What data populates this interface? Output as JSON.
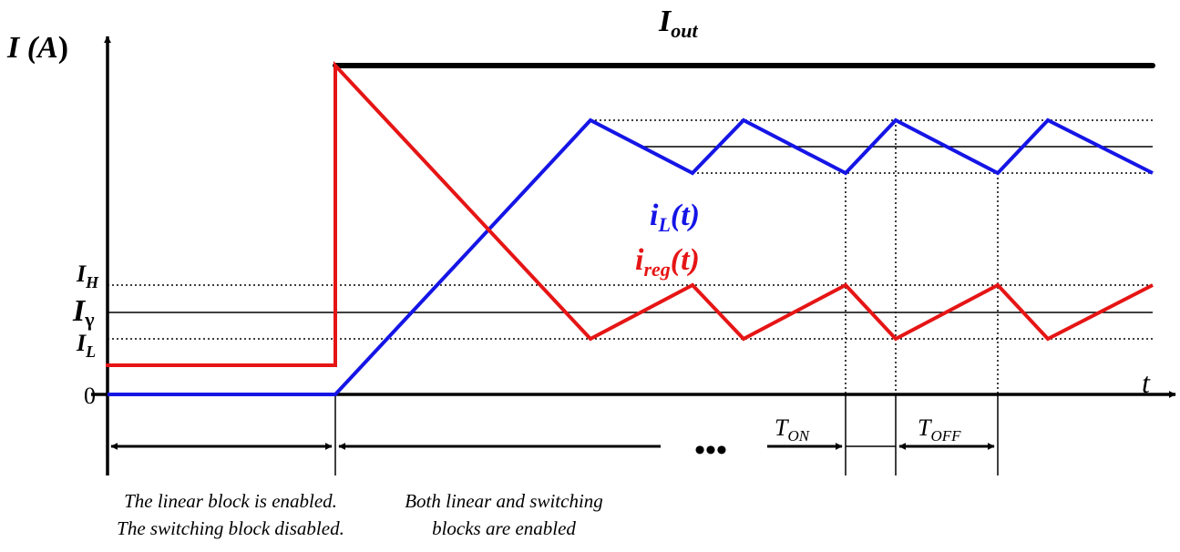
{
  "axis": {
    "y_label_main": "I (",
    "y_label_unit": "A",
    "y_label_close": ")",
    "x_label": "t",
    "origin_label": "0"
  },
  "levels": {
    "ih_main": "I",
    "ih_sub": "H",
    "igamma_main": "I",
    "igamma_sub": "γ",
    "il_main": "I",
    "il_sub": "L"
  },
  "signals": {
    "iout_main": "I",
    "iout_sub": "out",
    "il_main": "i",
    "il_sub": "L",
    "il_arg": "(t)",
    "ireg_main": "i",
    "ireg_sub": "reg",
    "ireg_arg": "(t)"
  },
  "timing": {
    "ton_main": "T",
    "ton_sub": "ON",
    "toff_main": "T",
    "toff_sub": "OFF",
    "ellipsis": "•••"
  },
  "phases": {
    "linear_line1": "The linear block is enabled.",
    "linear_line2": "The switching block disabled.",
    "both_line1": "Both linear and switching",
    "both_line2": "blocks are enabled"
  },
  "colors": {
    "iout": "#000000",
    "inductor_current": "#1515e6",
    "regulator_current": "#e61515",
    "axis": "#000000"
  }
}
